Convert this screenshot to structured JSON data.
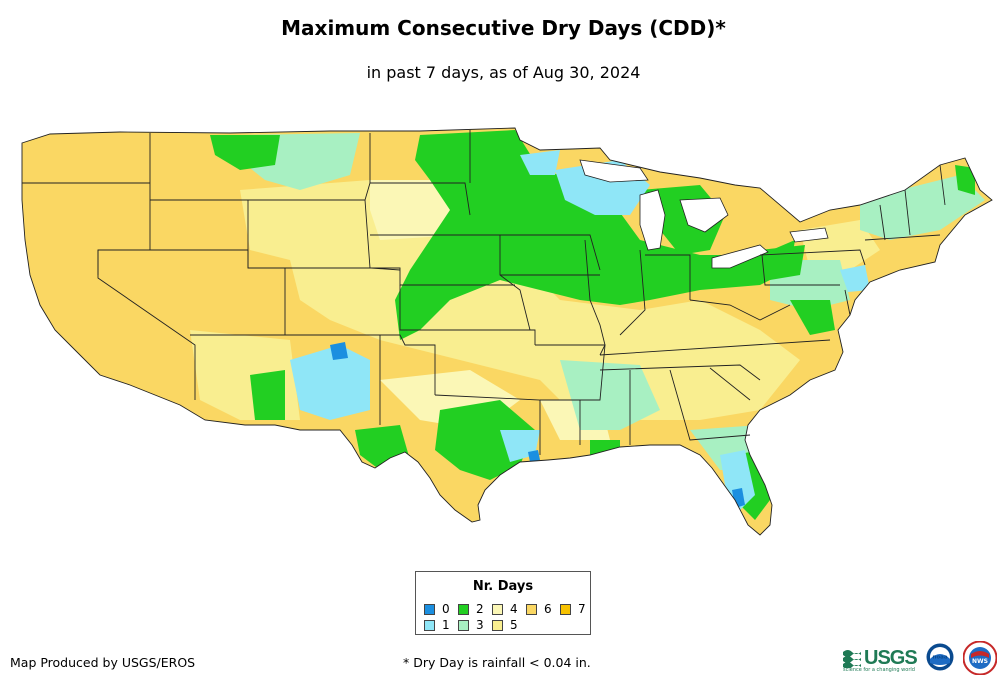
{
  "header": {
    "title": "Maximum Consecutive Dry Days (CDD)*",
    "subtitle": "in past 7 days, as of Aug 30, 2024"
  },
  "map": {
    "region": "Contiguous United States",
    "colors": {
      "background_base": "#fad763",
      "state_border": "#222222"
    }
  },
  "legend": {
    "title": "Nr. Days",
    "items": [
      {
        "label": "0",
        "color": "#1b8fe0"
      },
      {
        "label": "1",
        "color": "#8fe6f7"
      },
      {
        "label": "2",
        "color": "#22cf22"
      },
      {
        "label": "3",
        "color": "#a8f0c2"
      },
      {
        "label": "4",
        "color": "#fbf7b6"
      },
      {
        "label": "5",
        "color": "#f9ee90"
      },
      {
        "label": "6",
        "color": "#fad763"
      },
      {
        "label": "7",
        "color": "#f7c200"
      }
    ]
  },
  "footer": {
    "credit": "Map Produced by USGS/EROS",
    "note": "* Dry Day is rainfall < 0.04 in."
  },
  "logos": {
    "usgs": "USGS",
    "usgs_tagline": "science for a changing world",
    "noaa": "noaa",
    "nws": "NWS"
  }
}
